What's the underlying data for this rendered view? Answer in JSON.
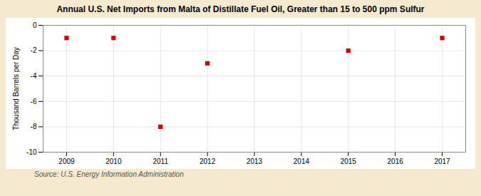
{
  "chart_data": {
    "type": "scatter",
    "title": "Annual U.S. Net Imports from Malta of Distillate Fuel Oil, Greater than 15 to 500 ppm Sulfur",
    "ylabel": "Thousand Barrels per Day",
    "source": "Source: U.S. Energy Information Administration",
    "x": [
      2009,
      2010,
      2011,
      2012,
      2015,
      2017
    ],
    "values": [
      -1.0,
      -1.0,
      -8.0,
      -3.0,
      -2.0,
      -1.0
    ],
    "color": "#cc0000",
    "marker": "square",
    "xlim": [
      2008.5,
      2017.5
    ],
    "xticks": [
      2009,
      2010,
      2011,
      2012,
      2013,
      2014,
      2015,
      2016,
      2017
    ],
    "ylim": [
      -10,
      0
    ],
    "yticks": [
      0,
      -2,
      -4,
      -6,
      -8,
      -10
    ],
    "grid": true
  }
}
